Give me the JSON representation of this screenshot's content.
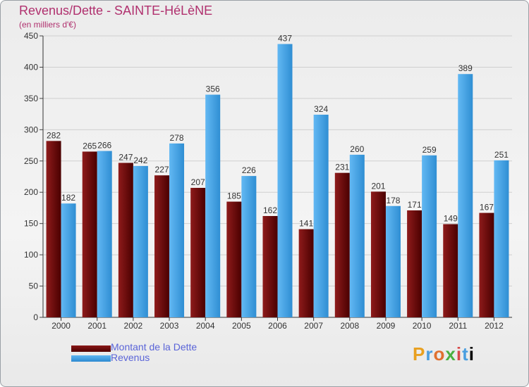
{
  "title": "Revenus/Dette - SAINTE-HéLèNE",
  "subtitle": "(en milliers d'€)",
  "logo_text": "Proxiti",
  "chart_data": {
    "type": "bar",
    "categories": [
      "2000",
      "2001",
      "2002",
      "2003",
      "2004",
      "2005",
      "2006",
      "2007",
      "2008",
      "2009",
      "2010",
      "2011",
      "2012"
    ],
    "series": [
      {
        "name": "Montant de la Dette",
        "color": "#6a0c0c",
        "values": [
          282,
          265,
          247,
          227,
          207,
          185,
          162,
          141,
          231,
          201,
          171,
          149,
          167
        ]
      },
      {
        "name": "Revenus",
        "color": "#4aa3e6",
        "values": [
          182,
          266,
          242,
          278,
          356,
          226,
          437,
          324,
          260,
          178,
          259,
          389,
          251
        ]
      }
    ],
    "ylim": [
      0,
      450
    ],
    "yticks": [
      "0",
      "50",
      "100",
      "150",
      "200",
      "250",
      "300",
      "350",
      "400",
      "450"
    ],
    "grid": true
  }
}
